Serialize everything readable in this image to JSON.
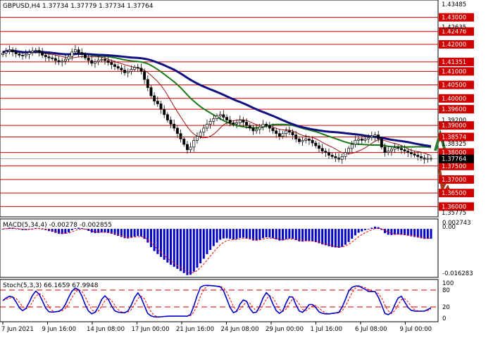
{
  "chart_data": {
    "type": "candlestick",
    "symbol_header": "GBPUSD,H4  1.37734 1.37779 1.37734 1.37764",
    "current_price": "1.37764",
    "price_axis_labels": [
      "1.43485",
      "1.43000",
      "1.42635",
      "1.42476",
      "1.42000",
      "1.41351",
      "1.41000",
      "1.40500",
      "1.40000",
      "1.39600",
      "1.39200",
      "1.39000",
      "1.38574",
      "1.38325",
      "1.38000",
      "1.37764",
      "1.37500",
      "1.37000",
      "1.36500",
      "1.36000",
      "1.35775"
    ],
    "red_labelled_levels": [
      "1.43000",
      "1.42476",
      "1.42000",
      "1.41351",
      "1.41000",
      "1.40500",
      "1.40000",
      "1.39600",
      "1.39000",
      "1.38574",
      "1.38000",
      "1.37500",
      "1.37000",
      "1.36500",
      "1.36000"
    ],
    "plain_labelled_levels": [
      "1.43485",
      "1.42635",
      "1.39200",
      "1.38325",
      "1.35775"
    ],
    "ylim": [
      1.35775,
      1.43485
    ],
    "closes": [
      1.4168,
      1.4174,
      1.4179,
      1.4172,
      1.4165,
      1.416,
      1.4158,
      1.4163,
      1.417,
      1.4175,
      1.4178,
      1.417,
      1.416,
      1.4154,
      1.415,
      1.4148,
      1.414,
      1.4135,
      1.4138,
      1.4145,
      1.4155,
      1.4172,
      1.418,
      1.417,
      1.4162,
      1.415,
      1.414,
      1.413,
      1.4136,
      1.4142,
      1.4145,
      1.414,
      1.4133,
      1.4125,
      1.4118,
      1.4112,
      1.4105,
      1.4095,
      1.41,
      1.4108,
      1.4115,
      1.4112,
      1.41,
      1.407,
      1.404,
      1.401,
      1.399,
      1.398,
      1.396,
      1.394,
      1.392,
      1.3905,
      1.389,
      1.387,
      1.385,
      1.383,
      1.381,
      1.382,
      1.3845,
      1.386,
      1.3875,
      1.389,
      1.3905,
      1.3915,
      1.3925,
      1.3935,
      1.394,
      1.393,
      1.392,
      1.391,
      1.3905,
      1.391,
      1.392,
      1.3912,
      1.39,
      1.389,
      1.388,
      1.3885,
      1.3895,
      1.3905,
      1.39,
      1.389,
      1.388,
      1.387,
      1.386,
      1.387,
      1.388,
      1.3875,
      1.3865,
      1.385,
      1.384,
      1.3845,
      1.385,
      1.3845,
      1.3835,
      1.3825,
      1.3815,
      1.3805,
      1.38,
      1.379,
      1.3785,
      1.378,
      1.3775,
      1.3785,
      1.38,
      1.3815,
      1.383,
      1.3845,
      1.385,
      1.3845,
      1.385,
      1.3855,
      1.386,
      1.3865,
      1.385,
      1.382,
      1.38,
      1.3805,
      1.3812,
      1.3818,
      1.3815,
      1.381,
      1.3805,
      1.38,
      1.3795,
      1.379,
      1.3785,
      1.378,
      1.3775,
      1.3778,
      1.3776
    ],
    "ma_fast_color": "#a01010",
    "ma_mid_color": "#1a7a1a",
    "ma_slow_color": "#101080",
    "macd": {
      "label": "MACD(5,34,4) -0.00278 -0.002855",
      "axis_labels": [
        "0.002743",
        "0.00",
        "-0.016283"
      ],
      "bar_color": "#0000c8",
      "signal_color": "#ff0000",
      "ylim": [
        -0.016283,
        0.002743
      ]
    },
    "stoch": {
      "label": "Stoch(5,3,3) 66.1659 67.9948",
      "axis_labels": [
        "100",
        "80",
        "20",
        "0"
      ],
      "levels": [
        80,
        20
      ],
      "k_color": "#0000c8",
      "d_color": "#ff0000",
      "ylim": [
        0,
        100
      ]
    },
    "x_tick_labels": [
      "7 Jun 2021",
      "9 Jun 16:00",
      "14 Jun 08:00",
      "17 Jun 00:00",
      "21 Jun 16:00",
      "24 Jun 08:00",
      "29 Jun 00:00",
      "1 Jul 16:00",
      "6 Jul 08:00",
      "9 Jul 00:00"
    ],
    "arrows": {
      "up_color": "#2e7d32",
      "down_color": "#a0401a"
    },
    "colors": {
      "grid_level": "#d00000",
      "current_box": "#000000",
      "background": "#ffffff"
    }
  }
}
